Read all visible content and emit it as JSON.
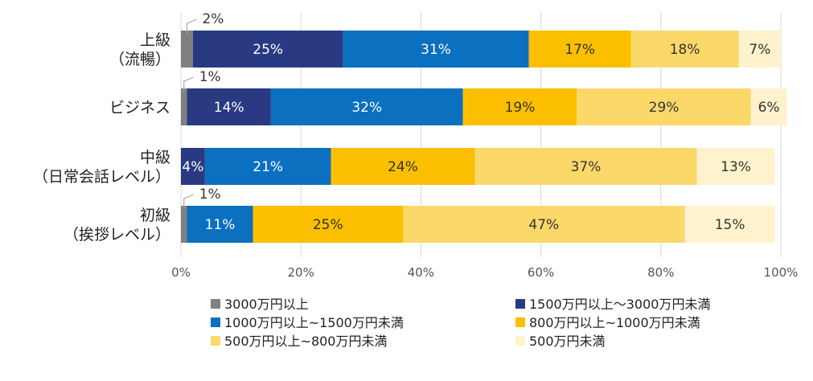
{
  "chart_data": {
    "type": "bar",
    "orientation": "horizontal",
    "stacked": true,
    "title": "",
    "xlabel": "",
    "ylabel": "",
    "xlim": [
      0,
      100
    ],
    "x_ticks": [
      "0%",
      "20%",
      "40%",
      "60%",
      "80%",
      "100%"
    ],
    "grid": true,
    "legend_position": "bottom",
    "categories": [
      [
        "上級",
        "（流暢）"
      ],
      [
        "ビジネス"
      ],
      [
        "中級",
        "（日常会話レベル）"
      ],
      [
        "初級",
        "（挨拶レベル）"
      ]
    ],
    "series": [
      {
        "name": "3000万円以上",
        "color": "#808080",
        "values": [
          2,
          1,
          0,
          1
        ],
        "labels": [
          "2%",
          "1%",
          "",
          "1%"
        ]
      },
      {
        "name": "1500万円以上～3000万円未満",
        "color": "#2a3a82",
        "values": [
          25,
          14,
          4,
          0
        ],
        "labels": [
          "25%",
          "14%",
          "4%",
          ""
        ]
      },
      {
        "name": "1000万円以上~1500万円未満",
        "color": "#0a70bf",
        "values": [
          31,
          32,
          21,
          11
        ],
        "labels": [
          "31%",
          "32%",
          "21%",
          "11%"
        ]
      },
      {
        "name": "800万円以上~1000万円未満",
        "color": "#fbbf00",
        "values": [
          17,
          19,
          24,
          25
        ],
        "labels": [
          "17%",
          "19%",
          "24%",
          "25%"
        ]
      },
      {
        "name": "500万円以上~800万円未満",
        "color": "#fbd86a",
        "values": [
          18,
          29,
          37,
          47
        ],
        "labels": [
          "18%",
          "29%",
          "37%",
          "47%"
        ]
      },
      {
        "name": "500万円未満",
        "color": "#fff2cc",
        "values": [
          7,
          6,
          13,
          15
        ],
        "labels": [
          "7%",
          "6%",
          "13%",
          "15%"
        ]
      }
    ]
  }
}
